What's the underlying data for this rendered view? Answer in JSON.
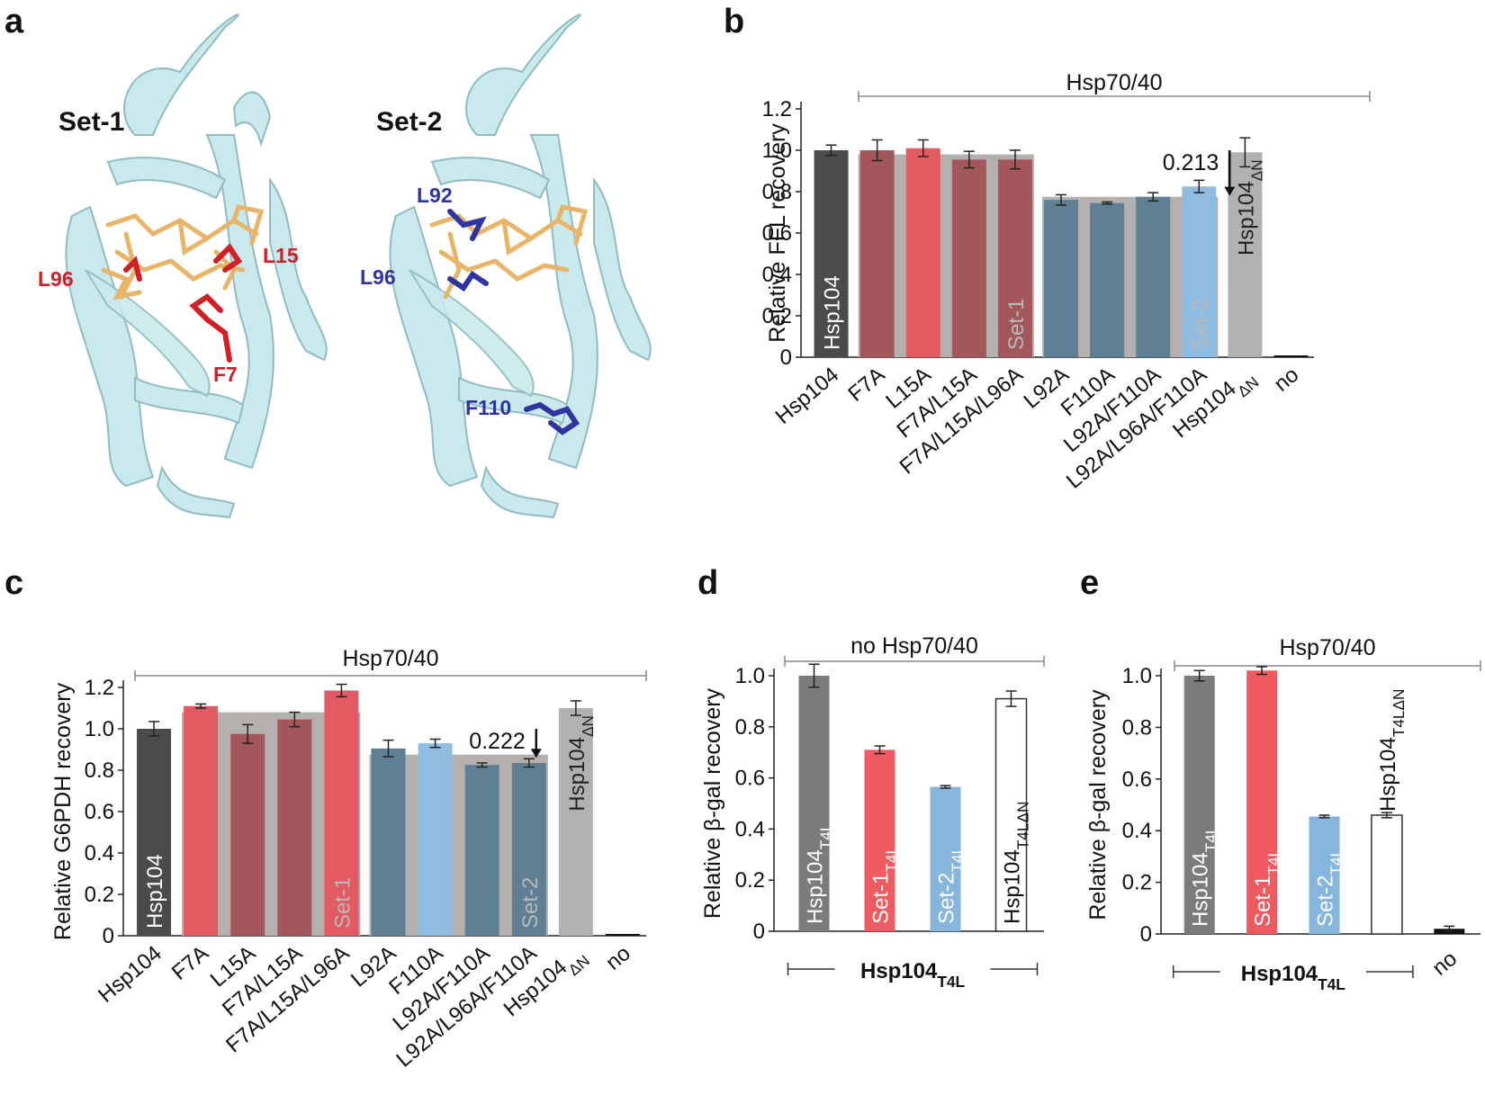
{
  "panels": {
    "a": {
      "letter": "a",
      "labels": {
        "set1": "Set-1",
        "set2": "Set-2",
        "l96_red": "L96",
        "l15": "L15",
        "f7": "F7",
        "l92": "L92",
        "l96_blue": "L96",
        "f110": "F110"
      }
    },
    "b": {
      "letter": "b"
    },
    "c": {
      "letter": "c"
    },
    "d": {
      "letter": "d"
    },
    "e": {
      "letter": "e"
    }
  },
  "colors": {
    "hsp104": "#4a4b4d",
    "red": "#a4575a",
    "red_light": "#e25a62",
    "blue": "#5f7f94",
    "blue_light": "#8fbde2",
    "grey_bar": "#b0b1b3",
    "grey_overlay": "#b3b0ae",
    "d_grey": "#7b7b7b",
    "d_red": "#ef5b61",
    "d_blue": "#86b6de",
    "cartoon": "#c9e9ec",
    "cartoon_edge": "#8fbcc2",
    "sticks": "#e8b468",
    "res_red": "#d11f26",
    "res_blue": "#2e35a0"
  },
  "chart_data": [
    {
      "id": "b",
      "type": "bar",
      "title": "Hsp70/40",
      "ylabel": "Relative FFL recovery",
      "ylim": [
        0,
        1.2
      ],
      "yticks": [
        "0",
        "0.2",
        "0.4",
        "0.6",
        "0.8",
        "1.0",
        "1.2"
      ],
      "categories": [
        "Hsp104",
        "F7A",
        "L15A",
        "F7A/L15A",
        "F7A/L15A/L96A",
        "L92A",
        "F110A",
        "L92A/F110A",
        "L92A/L96A/F110A",
        "Hsp104ΔN",
        "no"
      ],
      "values": [
        1.0,
        1.0,
        1.01,
        0.955,
        0.955,
        0.76,
        0.745,
        0.775,
        0.825,
        0.99,
        0.0
      ],
      "errors": [
        0.025,
        0.05,
        0.04,
        0.04,
        0.045,
        0.025,
        0.005,
        0.02,
        0.03,
        0.07,
        0.0
      ],
      "bar_colors": [
        "hsp104",
        "red",
        "red_light",
        "red",
        "red",
        "blue",
        "blue",
        "blue",
        "blue_light",
        "grey_bar",
        "none"
      ],
      "overlays": [
        {
          "from": 1,
          "to": 4,
          "value": 0.98,
          "label": "Set-1"
        },
        {
          "from": 5,
          "to": 8,
          "value": 0.775,
          "label": "Set-2"
        }
      ],
      "inbar_labels": {
        "Hsp104": "Hsp104",
        "Hsp104ΔN": "Hsp104ΔN"
      },
      "annotation": "0.213"
    },
    {
      "id": "c",
      "type": "bar",
      "title": "Hsp70/40",
      "ylabel": "Relative G6PDH recovery",
      "ylim": [
        0,
        1.2
      ],
      "yticks": [
        "0",
        "0.2",
        "0.4",
        "0.6",
        "0.8",
        "1.0",
        "1.2"
      ],
      "categories": [
        "Hsp104",
        "F7A",
        "L15A",
        "F7A/L15A",
        "F7A/L15A/L96A",
        "L92A",
        "F110A",
        "L92A/F110A",
        "L92A/L96A/F110A",
        "Hsp104ΔN",
        "no"
      ],
      "values": [
        1.0,
        1.11,
        0.975,
        1.045,
        1.185,
        0.905,
        0.93,
        0.825,
        0.835,
        1.1,
        0.005
      ],
      "errors": [
        0.035,
        0.01,
        0.045,
        0.035,
        0.03,
        0.04,
        0.02,
        0.01,
        0.02,
        0.035,
        0.0
      ],
      "bar_colors": [
        "hsp104",
        "red_light",
        "red",
        "red",
        "red_light",
        "blue",
        "blue_light",
        "blue",
        "blue",
        "grey_bar",
        "none"
      ],
      "overlays": [
        {
          "from": 1,
          "to": 4,
          "value": 1.08,
          "label": "Set-1"
        },
        {
          "from": 5,
          "to": 8,
          "value": 0.875,
          "label": "Set-2"
        }
      ],
      "inbar_labels": {
        "Hsp104": "Hsp104",
        "Hsp104ΔN": "Hsp104ΔN"
      },
      "annotation": "0.222"
    },
    {
      "id": "d",
      "type": "bar",
      "title": "no Hsp70/40",
      "ylabel": "Relative β-gal recovery",
      "ylim": [
        0,
        1.0
      ],
      "yticks": [
        "0",
        "0.2",
        "0.4",
        "0.6",
        "0.8",
        "1.0"
      ],
      "categories": [
        "Hsp104T4L",
        "Set-1T4L",
        "Set-2T4L",
        "Hsp104T4LΔN"
      ],
      "values": [
        1.0,
        0.71,
        0.565,
        0.91
      ],
      "errors": [
        0.045,
        0.015,
        0.005,
        0.03
      ],
      "bar_colors": [
        "d_grey",
        "d_red",
        "d_blue",
        "white"
      ],
      "xgroup_label": "Hsp104T4L"
    },
    {
      "id": "e",
      "type": "bar",
      "title": "Hsp70/40",
      "ylabel": "Relative β-gal recovery",
      "ylim": [
        0,
        1.0
      ],
      "yticks": [
        "0",
        "0.2",
        "0.4",
        "0.6",
        "0.8",
        "1.0"
      ],
      "categories": [
        "Hsp104T4L",
        "Set-1T4L",
        "Set-2T4L",
        "Hsp104T4LΔN",
        "no"
      ],
      "values": [
        1.0,
        1.02,
        0.455,
        0.46,
        0.02
      ],
      "errors": [
        0.02,
        0.015,
        0.005,
        0.01,
        0.01
      ],
      "bar_colors": [
        "d_grey",
        "d_red",
        "d_blue",
        "white",
        "black"
      ],
      "xgroup_label": "Hsp104T4L",
      "extra_xlabel": "no"
    }
  ]
}
